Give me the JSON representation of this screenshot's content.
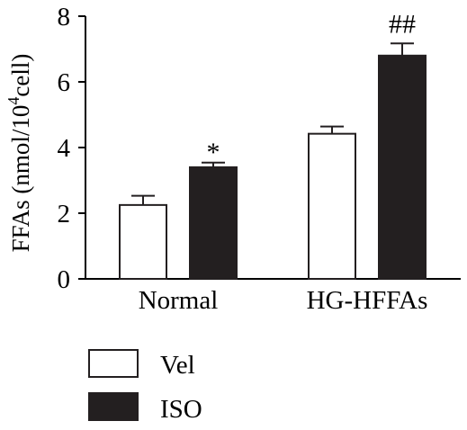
{
  "chart_data": {
    "type": "bar",
    "categories": [
      "Normal",
      "HG-HFFAs"
    ],
    "series": [
      {
        "name": "Vel",
        "values": [
          2.25,
          4.42
        ],
        "errors": [
          0.28,
          0.22
        ],
        "color": "#ffffff"
      },
      {
        "name": "ISO",
        "values": [
          3.4,
          6.8
        ],
        "errors": [
          0.14,
          0.37
        ],
        "color": "#231f20"
      }
    ],
    "annotations": [
      {
        "category": 0,
        "series": 1,
        "text": "*"
      },
      {
        "category": 1,
        "series": 1,
        "text": "##"
      }
    ],
    "ylabel_main": "FFAs  (nmol/10",
    "ylabel_sup": "4",
    "ylabel_end": "cell)",
    "ylim": [
      0,
      8
    ],
    "yticks": [
      "0",
      "2",
      "4",
      "6",
      "8"
    ],
    "grid": false,
    "legend_position": "bottom-left"
  }
}
